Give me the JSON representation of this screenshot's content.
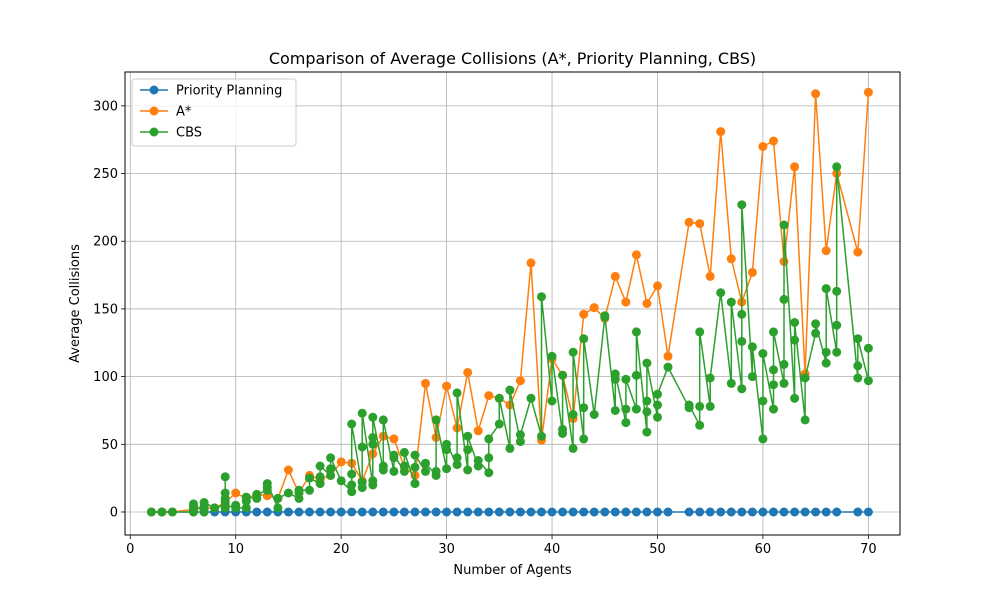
{
  "chart_data": {
    "type": "line",
    "title": "Comparison of Average Collisions (A*, Priority Planning, CBS)",
    "xlabel": "Number of Agents",
    "ylabel": "Average Collisions",
    "xlim": [
      -0.5,
      73
    ],
    "ylim": [
      -17,
      325
    ],
    "xticks": [
      0,
      10,
      20,
      30,
      40,
      50,
      60,
      70
    ],
    "yticks": [
      0,
      50,
      100,
      150,
      200,
      250,
      300
    ],
    "grid": true,
    "legend_position": "top-left",
    "series": [
      {
        "name": "Priority Planning",
        "color": "#1f77b4",
        "x": [
          2,
          3,
          4,
          6,
          7,
          8,
          9,
          10,
          11,
          12,
          13,
          14,
          15,
          16,
          17,
          18,
          19,
          20,
          21,
          22,
          23,
          24,
          25,
          26,
          27,
          28,
          29,
          30,
          31,
          32,
          33,
          34,
          35,
          36,
          37,
          38,
          39,
          40,
          41,
          42,
          43,
          44,
          45,
          46,
          47,
          48,
          49,
          50,
          51,
          53,
          54,
          55,
          56,
          57,
          58,
          59,
          60,
          61,
          62,
          63,
          64,
          65,
          66,
          67,
          69,
          70
        ],
        "y": [
          0,
          0,
          0,
          0,
          0,
          0,
          0,
          0,
          0,
          0,
          0,
          0,
          0,
          0,
          0,
          0,
          0,
          0,
          0,
          0,
          0,
          0,
          0,
          0,
          0,
          0,
          0,
          0,
          0,
          0,
          0,
          0,
          0,
          0,
          0,
          0,
          0,
          0,
          0,
          0,
          0,
          0,
          0,
          0,
          0,
          0,
          0,
          0,
          0,
          0,
          0,
          0,
          0,
          0,
          0,
          0,
          0,
          0,
          0,
          0,
          0,
          0,
          0,
          0,
          0,
          0
        ]
      },
      {
        "name": "A*",
        "color": "#ff7f0e",
        "x": [
          2,
          3,
          4,
          6,
          7,
          8,
          9,
          10,
          11,
          12,
          13,
          14,
          15,
          16,
          17,
          18,
          19,
          20,
          21,
          22,
          23,
          24,
          25,
          26,
          27,
          28,
          29,
          30,
          31,
          32,
          33,
          34,
          35,
          36,
          37,
          38,
          39,
          40,
          41,
          42,
          43,
          44,
          45,
          46,
          47,
          48,
          49,
          50,
          51,
          53,
          54,
          55,
          56,
          57,
          58,
          59,
          60,
          61,
          62,
          63,
          64,
          65,
          66,
          67,
          69,
          70
        ],
        "y": [
          0,
          0,
          0,
          2,
          3,
          3,
          7,
          14,
          10,
          13,
          12,
          10,
          31,
          14,
          27,
          24,
          27,
          37,
          36,
          23,
          43,
          56,
          54,
          33,
          27,
          95,
          55,
          93,
          62,
          103,
          60,
          86,
          84,
          79,
          97,
          184,
          53,
          113,
          101,
          69,
          146,
          151,
          143,
          174,
          155,
          190,
          154,
          167,
          115,
          214,
          213,
          174,
          281,
          187,
          155,
          177,
          270,
          274,
          185,
          255,
          102,
          309,
          193,
          250,
          192,
          310
        ]
      },
      {
        "name": "CBS",
        "color": "#2ca02c",
        "x": [
          2,
          3,
          3,
          4,
          6,
          6,
          6,
          6,
          7,
          7,
          7,
          7,
          8,
          9,
          9,
          9,
          9,
          9,
          9,
          10,
          10,
          11,
          11,
          11,
          12,
          12,
          13,
          13,
          13,
          14,
          14,
          15,
          16,
          16,
          16,
          17,
          17,
          18,
          18,
          18,
          19,
          19,
          19,
          20,
          21,
          21,
          21,
          21,
          22,
          22,
          22,
          22,
          23,
          23,
          23,
          23,
          23,
          24,
          24,
          24,
          25,
          25,
          25,
          26,
          26,
          26,
          27,
          27,
          27,
          28,
          28,
          29,
          29,
          29,
          30,
          30,
          30,
          31,
          31,
          31,
          32,
          32,
          32,
          33,
          33,
          34,
          34,
          34,
          35,
          35,
          36,
          36,
          37,
          37,
          38,
          39,
          39,
          40,
          40,
          41,
          41,
          41,
          42,
          42,
          42,
          43,
          43,
          43,
          44,
          45,
          45,
          46,
          46,
          46,
          47,
          47,
          47,
          48,
          48,
          48,
          49,
          49,
          49,
          49,
          50,
          50,
          50,
          51,
          53,
          53,
          54,
          54,
          54,
          55,
          55,
          56,
          57,
          57,
          58,
          58,
          58,
          58,
          59,
          59,
          60,
          60,
          60,
          61,
          61,
          61,
          61,
          62,
          62,
          62,
          62,
          63,
          63,
          63,
          64,
          64,
          65,
          65,
          66,
          66,
          66,
          67,
          67,
          67,
          67,
          69,
          69,
          69,
          70,
          70
        ],
        "y": [
          0,
          0,
          0,
          0,
          0,
          2,
          4,
          6,
          0,
          2,
          4,
          7,
          3,
          5,
          8,
          10,
          14,
          26,
          3,
          5,
          3,
          3,
          8,
          11,
          10,
          13,
          16,
          18,
          21,
          3,
          10,
          14,
          10,
          14,
          16,
          16,
          25,
          21,
          26,
          34,
          27,
          32,
          40,
          23,
          15,
          20,
          28,
          65,
          18,
          22,
          48,
          73,
          20,
          23,
          50,
          55,
          70,
          31,
          34,
          68,
          30,
          40,
          42,
          30,
          34,
          44,
          21,
          33,
          42,
          30,
          36,
          27,
          30,
          68,
          32,
          46,
          50,
          35,
          40,
          88,
          31,
          46,
          56,
          34,
          38,
          29,
          40,
          54,
          65,
          84,
          47,
          90,
          52,
          57,
          84,
          56,
          159,
          82,
          115,
          58,
          61,
          101,
          47,
          72,
          118,
          54,
          77,
          128,
          72,
          144,
          145,
          75,
          98,
          102,
          66,
          76,
          98,
          76,
          101,
          133,
          59,
          74,
          82,
          110,
          70,
          79,
          87,
          107,
          77,
          79,
          64,
          78,
          133,
          78,
          99,
          162,
          95,
          155,
          91,
          126,
          146,
          227,
          100,
          122,
          54,
          82,
          117,
          76,
          94,
          105,
          133,
          95,
          109,
          157,
          212,
          84,
          127,
          140,
          68,
          99,
          132,
          139,
          110,
          118,
          165,
          118,
          138,
          163,
          255,
          99,
          108,
          128,
          97,
          121
        ]
      }
    ]
  }
}
